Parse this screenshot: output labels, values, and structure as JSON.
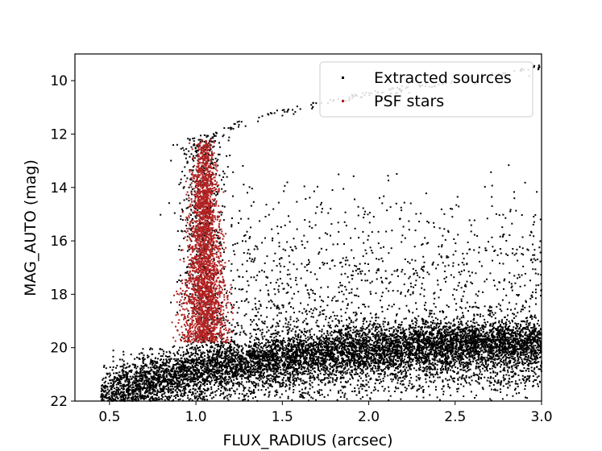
{
  "chart_data": {
    "type": "scatter",
    "title": "",
    "xlabel": "FLUX_RADIUS (arcsec)",
    "ylabel": "MAG_AUTO (mag)",
    "xlim": [
      0.3,
      3.0
    ],
    "ylim": [
      22,
      9
    ],
    "y_inverted": true,
    "xticks": [
      0.5,
      1.0,
      1.5,
      2.0,
      2.5,
      3.0
    ],
    "xtick_labels": [
      "0.5",
      "1.0",
      "1.5",
      "2.0",
      "2.5",
      "3.0"
    ],
    "yticks": [
      10,
      12,
      14,
      16,
      18,
      20,
      22
    ],
    "ytick_labels": [
      "10",
      "12",
      "14",
      "16",
      "18",
      "20",
      "22"
    ],
    "grid": false,
    "legend_position": "top-right",
    "series": [
      {
        "name": "Extracted sources",
        "color": "#000000",
        "components": [
          {
            "kind": "bright_ridge",
            "x": [
              1.05,
              1.2,
              1.4,
              1.7,
              2.0,
              2.4,
              2.8,
              3.0
            ],
            "y": [
              12.2,
              11.6,
              11.2,
              10.8,
              10.4,
              10.0,
              9.6,
              9.4
            ]
          },
          {
            "kind": "main_cloud",
            "x_range": [
              0.45,
              3.0
            ],
            "y_range": [
              19.2,
              22.0
            ],
            "locus_x": [
              0.5,
              1.0,
              1.5,
              2.0,
              2.5,
              3.0
            ],
            "locus_y": [
              21.7,
              20.8,
              20.3,
              20.0,
              19.9,
              19.8
            ]
          },
          {
            "kind": "stellar_locus",
            "x_range": [
              0.85,
              1.25
            ],
            "y_range": [
              12.0,
              20.0
            ]
          },
          {
            "kind": "scattered_extended",
            "x_range": [
              1.2,
              3.0
            ],
            "y_range": [
              13.0,
              19.5
            ]
          }
        ]
      },
      {
        "name": "PSF stars",
        "color": "#b22222",
        "x_range": [
          0.85,
          1.22
        ],
        "y_range": [
          12.2,
          19.8
        ]
      }
    ]
  }
}
